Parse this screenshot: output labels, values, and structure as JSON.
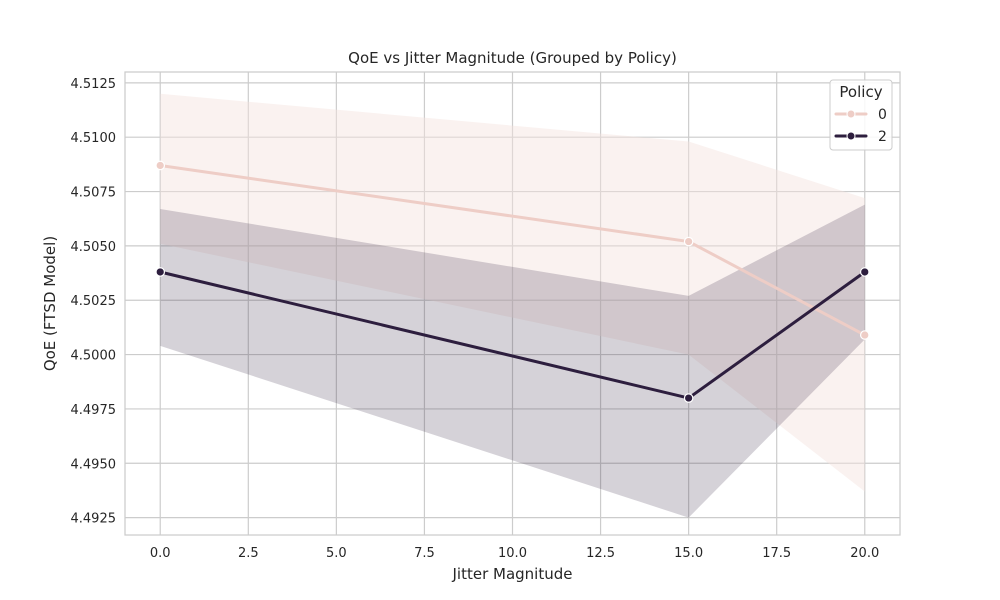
{
  "chart_data": {
    "type": "line",
    "title": "QoE vs Jitter Magnitude (Grouped by Policy)",
    "xlabel": "Jitter Magnitude",
    "ylabel": "QoE (FTSD Model)",
    "xlim": [
      -1.0,
      21.0
    ],
    "ylim": [
      4.4917,
      4.513
    ],
    "xticks": [
      0.0,
      2.5,
      5.0,
      7.5,
      10.0,
      12.5,
      15.0,
      17.5,
      20.0
    ],
    "xtick_labels": [
      "0.0",
      "2.5",
      "5.0",
      "7.5",
      "10.0",
      "12.5",
      "15.0",
      "17.5",
      "20.0"
    ],
    "yticks": [
      4.4925,
      4.495,
      4.4975,
      4.5,
      4.5025,
      4.505,
      4.5075,
      4.51,
      4.5125
    ],
    "ytick_labels": [
      "4.4925",
      "4.4950",
      "4.4975",
      "4.5000",
      "4.5025",
      "4.5050",
      "4.5075",
      "4.5100",
      "4.5125"
    ],
    "grid": true,
    "legend": {
      "title": "Policy",
      "placement": "top-right"
    },
    "series": [
      {
        "name": "0",
        "color": "#eecdc6",
        "band_color": "#f5e3de",
        "x": [
          0,
          15,
          20
        ],
        "y": [
          4.5087,
          4.5052,
          4.5009
        ],
        "ci_low": [
          4.5051,
          4.5,
          4.4937
        ],
        "ci_high": [
          4.512,
          4.5098,
          4.5072
        ]
      },
      {
        "name": "2",
        "color": "#2d1e3e",
        "band_color": "#2d1e3e",
        "x": [
          0,
          15,
          20
        ],
        "y": [
          4.5038,
          4.498,
          4.5038
        ],
        "ci_low": [
          4.5004,
          4.4925,
          4.5007
        ],
        "ci_high": [
          4.5067,
          4.5027,
          4.5069
        ]
      }
    ]
  }
}
